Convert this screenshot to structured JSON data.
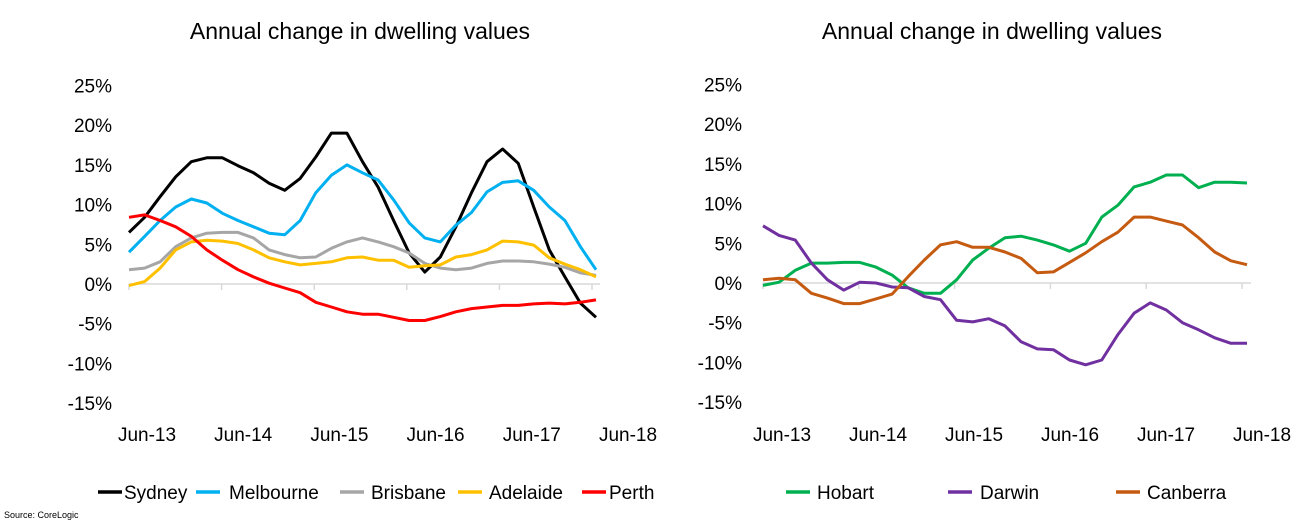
{
  "source": "Source:  CoreLogic",
  "chart_data": [
    {
      "type": "line",
      "title": "Annual change in dwelling values",
      "ylim": [
        -15,
        25
      ],
      "yticks": [
        "25%",
        "20%",
        "15%",
        "10%",
        "5%",
        "0%",
        "-5%",
        "-10%",
        "-15%"
      ],
      "ytick_values": [
        25,
        20,
        15,
        10,
        5,
        0,
        -5,
        -10,
        -15
      ],
      "xticks": [
        "Jun-13",
        "Jun-14",
        "Jun-15",
        "Jun-16",
        "Jun-17",
        "Jun-18"
      ],
      "legend_position": "bottom",
      "grid": false,
      "x": [
        "Jun-13",
        "Aug-13",
        "Oct-13",
        "Dec-13",
        "Feb-14",
        "Apr-14",
        "Jun-14",
        "Aug-14",
        "Oct-14",
        "Dec-14",
        "Feb-15",
        "Apr-15",
        "Jun-15",
        "Aug-15",
        "Oct-15",
        "Dec-15",
        "Feb-16",
        "Apr-16",
        "Jun-16",
        "Aug-16",
        "Oct-16",
        "Dec-16",
        "Feb-17",
        "Apr-17",
        "Jun-17",
        "Aug-17",
        "Oct-17",
        "Dec-17",
        "Feb-18",
        "Apr-18",
        "Jun-18"
      ],
      "series": [
        {
          "name": "Sydney",
          "color": "#000000",
          "values": [
            6.5,
            8.4,
            11,
            13.5,
            15.4,
            15.9,
            15.9,
            14.9,
            14,
            12.7,
            11.8,
            13.3,
            16,
            19,
            19,
            15.4,
            12.2,
            8,
            3.9,
            1.5,
            3.4,
            7.2,
            11.5,
            15.4,
            17,
            15.2,
            9.7,
            4.3,
            0.9,
            -2.4,
            -4.2
          ]
        },
        {
          "name": "Melbourne",
          "color": "#00b0f0",
          "values": [
            4,
            6,
            8,
            9.7,
            10.7,
            10.2,
            8.9,
            8,
            7.2,
            6.4,
            6.2,
            8,
            11.5,
            13.7,
            15,
            14,
            13.1,
            10.6,
            7.7,
            5.8,
            5.3,
            7.4,
            9,
            11.6,
            12.8,
            13,
            11.8,
            9.7,
            8,
            4.7,
            1.8
          ]
        },
        {
          "name": "Brisbane",
          "color": "#a6a6a6",
          "values": [
            1.8,
            2,
            2.8,
            4.7,
            5.8,
            6.4,
            6.5,
            6.5,
            5.8,
            4.3,
            3.7,
            3.3,
            3.4,
            4.5,
            5.3,
            5.8,
            5.3,
            4.7,
            3.9,
            2.6,
            2,
            1.8,
            2,
            2.6,
            2.9,
            2.9,
            2.8,
            2.5,
            2.1,
            1.4,
            1.1
          ]
        },
        {
          "name": "Adelaide",
          "color": "#ffc000",
          "values": [
            -0.2,
            0.3,
            2,
            4.3,
            5.3,
            5.5,
            5.4,
            5.1,
            4.3,
            3.3,
            2.8,
            2.4,
            2.6,
            2.8,
            3.3,
            3.4,
            3,
            3,
            2.1,
            2.3,
            2.4,
            3.4,
            3.7,
            4.3,
            5.4,
            5.3,
            4.9,
            3.3,
            2.5,
            1.8,
            0.9
          ]
        },
        {
          "name": "Perth",
          "color": "#ff0000",
          "values": [
            8.4,
            8.7,
            8,
            7.2,
            6,
            4.3,
            3,
            1.8,
            0.9,
            0.1,
            -0.5,
            -1.1,
            -2.3,
            -2.9,
            -3.5,
            -3.8,
            -3.8,
            -4.2,
            -4.6,
            -4.6,
            -4.1,
            -3.5,
            -3.1,
            -2.9,
            -2.7,
            -2.7,
            -2.5,
            -2.4,
            -2.5,
            -2.3,
            -2
          ]
        }
      ]
    },
    {
      "type": "line",
      "title": "Annual change in dwelling values",
      "ylim": [
        -15,
        25
      ],
      "yticks": [
        "25%",
        "20%",
        "15%",
        "10%",
        "5%",
        "0%",
        "-5%",
        "-10%",
        "-15%"
      ],
      "ytick_values": [
        25,
        20,
        15,
        10,
        5,
        0,
        -5,
        -10,
        -15
      ],
      "xticks": [
        "Jun-13",
        "Jun-14",
        "Jun-15",
        "Jun-16",
        "Jun-17",
        "Jun-18"
      ],
      "legend_position": "bottom",
      "grid": false,
      "x": [
        "Jun-13",
        "Aug-13",
        "Oct-13",
        "Dec-13",
        "Feb-14",
        "Apr-14",
        "Jun-14",
        "Aug-14",
        "Oct-14",
        "Dec-14",
        "Feb-15",
        "Apr-15",
        "Jun-15",
        "Aug-15",
        "Oct-15",
        "Dec-15",
        "Feb-16",
        "Apr-16",
        "Jun-16",
        "Aug-16",
        "Oct-16",
        "Dec-16",
        "Feb-17",
        "Apr-17",
        "Jun-17",
        "Aug-17",
        "Oct-17",
        "Dec-17",
        "Feb-18",
        "Apr-18",
        "Jun-18"
      ],
      "series": [
        {
          "name": "Hobart",
          "color": "#00b050",
          "values": [
            -0.3,
            0.1,
            1.6,
            2.5,
            2.5,
            2.6,
            2.6,
            2,
            1,
            -0.6,
            -1.3,
            -1.3,
            0.4,
            2.9,
            4.4,
            5.7,
            5.9,
            5.4,
            4.8,
            4,
            5,
            8.3,
            9.8,
            12.1,
            12.7,
            13.6,
            13.6,
            12,
            12.7,
            12.7,
            12.6
          ]
        },
        {
          "name": "Darwin",
          "color": "#7030a0",
          "values": [
            7.2,
            6,
            5.4,
            2.5,
            0.4,
            -0.9,
            0.1,
            0,
            -0.5,
            -0.6,
            -1.7,
            -2.1,
            -4.7,
            -4.9,
            -4.5,
            -5.4,
            -7.4,
            -8.3,
            -8.4,
            -9.7,
            -10.3,
            -9.7,
            -6.5,
            -3.8,
            -2.5,
            -3.4,
            -5,
            -5.9,
            -6.9,
            -7.6,
            -7.6
          ]
        },
        {
          "name": "Canberra",
          "color": "#c55a11",
          "values": [
            0.4,
            0.6,
            0.4,
            -1.3,
            -1.9,
            -2.6,
            -2.6,
            -2,
            -1.4,
            0.8,
            2.9,
            4.8,
            5.2,
            4.5,
            4.5,
            3.9,
            3.1,
            1.3,
            1.4,
            2.6,
            3.8,
            5.2,
            6.4,
            8.3,
            8.3,
            7.8,
            7.3,
            5.7,
            3.9,
            2.8,
            2.3
          ]
        }
      ]
    }
  ]
}
